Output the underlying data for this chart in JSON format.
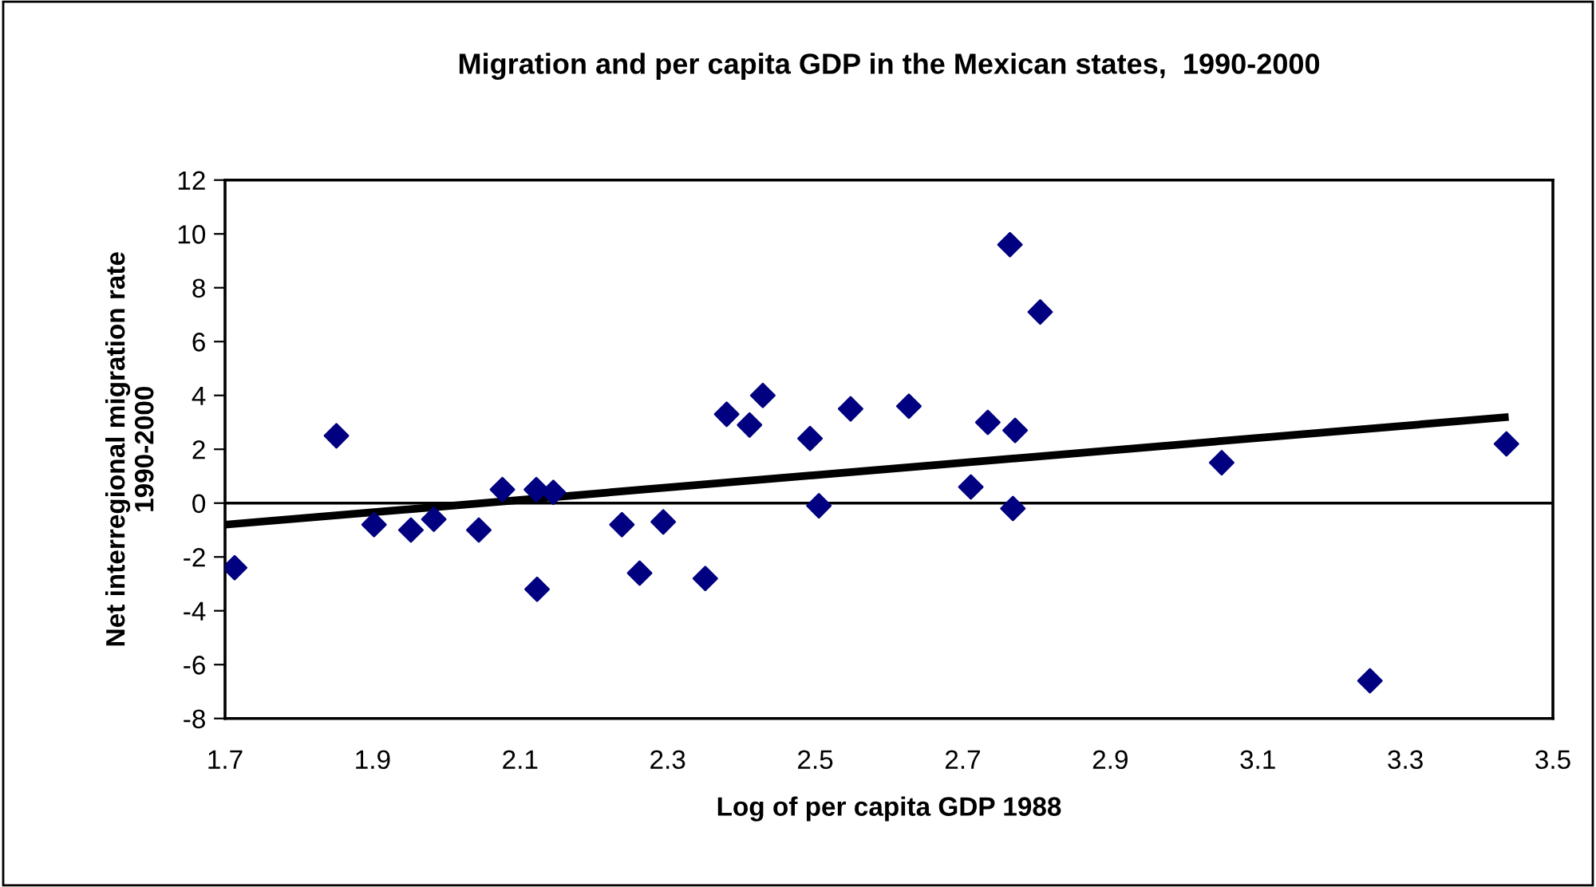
{
  "chart_data": {
    "type": "scatter",
    "title": "Migration and per capita GDP in the Mexican states,  1990-2000",
    "xlabel": "Log of per capita GDP 1988",
    "ylabel": "Net interregional migration rate\n1990-2000",
    "xlim": [
      1.7,
      3.5
    ],
    "xticks": [
      {
        "value": 1.7,
        "label": "1.7"
      },
      {
        "value": 1.9,
        "label": "1.9"
      },
      {
        "value": 2.1,
        "label": "2.1"
      },
      {
        "value": 2.3,
        "label": "2.3"
      },
      {
        "value": 2.5,
        "label": "2.5"
      },
      {
        "value": 2.7,
        "label": "2.7"
      },
      {
        "value": 2.9,
        "label": "2.9"
      },
      {
        "value": 3.1,
        "label": "3.1"
      },
      {
        "value": 3.3,
        "label": "3.3"
      },
      {
        "value": 3.5,
        "label": "3.5"
      }
    ],
    "ylim": [
      -8,
      12
    ],
    "yticks": [
      -8,
      -6,
      -4,
      -2,
      0,
      2,
      4,
      6,
      8,
      10,
      12
    ],
    "grid": false,
    "marker": "diamond",
    "ref_lines": [
      {
        "axis": "y",
        "value": 0,
        "color": "#000000"
      }
    ],
    "series": [
      {
        "color": "#000080",
        "x": [
          1.713,
          1.851,
          1.902,
          1.952,
          1.983,
          2.044,
          2.076,
          2.122,
          2.145,
          2.123,
          2.238,
          2.262,
          2.294,
          2.351,
          2.38,
          2.411,
          2.429,
          2.493,
          2.505,
          2.548,
          2.627,
          2.711,
          2.734,
          2.771,
          2.764,
          2.768,
          2.805,
          3.051,
          3.252,
          3.437
        ],
        "values": [
          -2.4,
          2.5,
          -0.8,
          -1.0,
          -0.6,
          -1.0,
          0.5,
          0.5,
          0.4,
          -3.2,
          -0.8,
          -2.6,
          -0.7,
          -2.8,
          3.3,
          2.9,
          4.0,
          2.4,
          -0.1,
          3.5,
          3.6,
          0.6,
          3.0,
          2.7,
          9.6,
          -0.2,
          7.1,
          1.5,
          -6.6,
          2.2
        ]
      },
      {
        "type": "line",
        "color": "#000000",
        "marker": "none",
        "x": [
          1.7,
          3.44
        ],
        "values": [
          -0.8,
          3.2
        ]
      }
    ]
  }
}
